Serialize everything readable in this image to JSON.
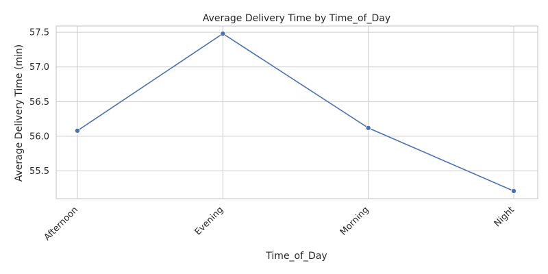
{
  "chart_data": {
    "type": "line",
    "title": "Average Delivery Time by Time_of_Day",
    "xlabel": "Time_of_Day",
    "ylabel": "Average Delivery Time (min)",
    "categories": [
      "Afternoon",
      "Evening",
      "Morning",
      "Night"
    ],
    "series": [
      {
        "values": [
          56.08,
          57.48,
          56.12,
          55.21
        ]
      }
    ],
    "yticks": [
      "55.5",
      "56.0",
      "56.5",
      "57.0",
      "57.5"
    ],
    "ylim": [
      55.1,
      57.59
    ],
    "grid": true,
    "line_color": "#4c72b0",
    "marker": "circle",
    "xtick_rotation": 45
  }
}
